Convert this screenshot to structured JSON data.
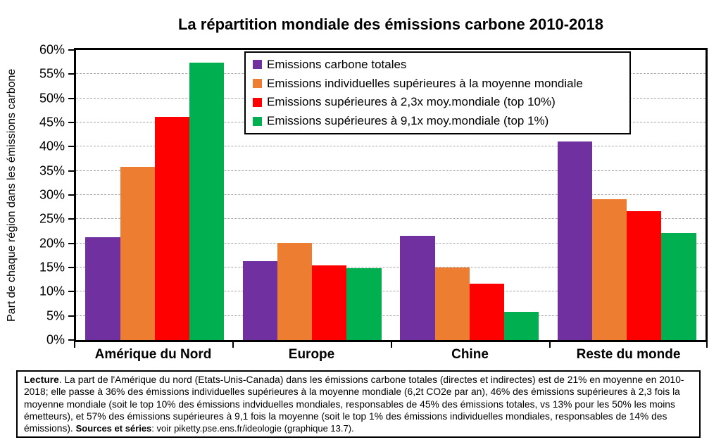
{
  "chart_data": {
    "type": "bar",
    "title": "La répartition mondiale des émissions carbone 2010-2018",
    "xlabel": "",
    "ylabel": "Part de chaque région dans les émissions carbone",
    "ylim": [
      0,
      60
    ],
    "grid": "horizontal-dashed",
    "legend_position": "top-center-inside",
    "y_ticks": {
      "values": [
        0,
        5,
        10,
        15,
        20,
        25,
        30,
        35,
        40,
        45,
        50,
        55,
        60
      ],
      "labels": [
        "0%",
        "5%",
        "10%",
        "15%",
        "20%",
        "25%",
        "30%",
        "35%",
        "40%",
        "45%",
        "50%",
        "55%",
        "60%"
      ]
    },
    "categories": [
      "Amérique du Nord",
      "Europe",
      "Chine",
      "Reste du monde"
    ],
    "series": [
      {
        "name": "Emissions carbone totales",
        "color": "#7030A0",
        "values": [
          21.3,
          16.3,
          21.5,
          41.0
        ]
      },
      {
        "name": "Emissions individuelles supérieures à la moyenne mondiale",
        "color": "#ED7D31",
        "values": [
          35.8,
          20.1,
          15.0,
          29.2
        ]
      },
      {
        "name": "Emissions supérieures à 2,3x moy.mondiale (top 10%)",
        "color": "#FF0000",
        "values": [
          46.2,
          15.5,
          11.6,
          26.6
        ]
      },
      {
        "name": "Emissions supérieures à 9,1x moy.mondiale (top 1%)",
        "color": "#00B050",
        "values": [
          57.4,
          14.8,
          5.8,
          22.2
        ]
      }
    ]
  },
  "note": {
    "lecture_label": "Lecture",
    "body": ". La part de l'Amérique du nord (Etats-Unis-Canada) dans les émissions carbone totales (directes et indirectes) est de 21% en moyenne en 2010-2018; elle passe à 36% des émissions individuelles supérieures à la moyenne mondiale (6,2t CO2e par an), 46% des émissions supérieures à 2,3 fois la moyenne mondiale (soit le top 10% des émissions indviduelles mondiales, responsables de 45% des émissions totales, vs 13% pour les 50% les moins émetteurs), et 57% des émissions supérieures à 9,1 fois la moyenne (soit le top 1% des émissions individuelles mondiales, responsables de 14% des émissions).  ",
    "sources_label": "Sources et séries",
    "sources_tail": ": voir piketty.pse.ens.fr/ideologie (graphique 13.7)."
  },
  "colors": {
    "gridline": "#A6A6A6",
    "axis": "#000000",
    "background": "#FFFFFF"
  }
}
